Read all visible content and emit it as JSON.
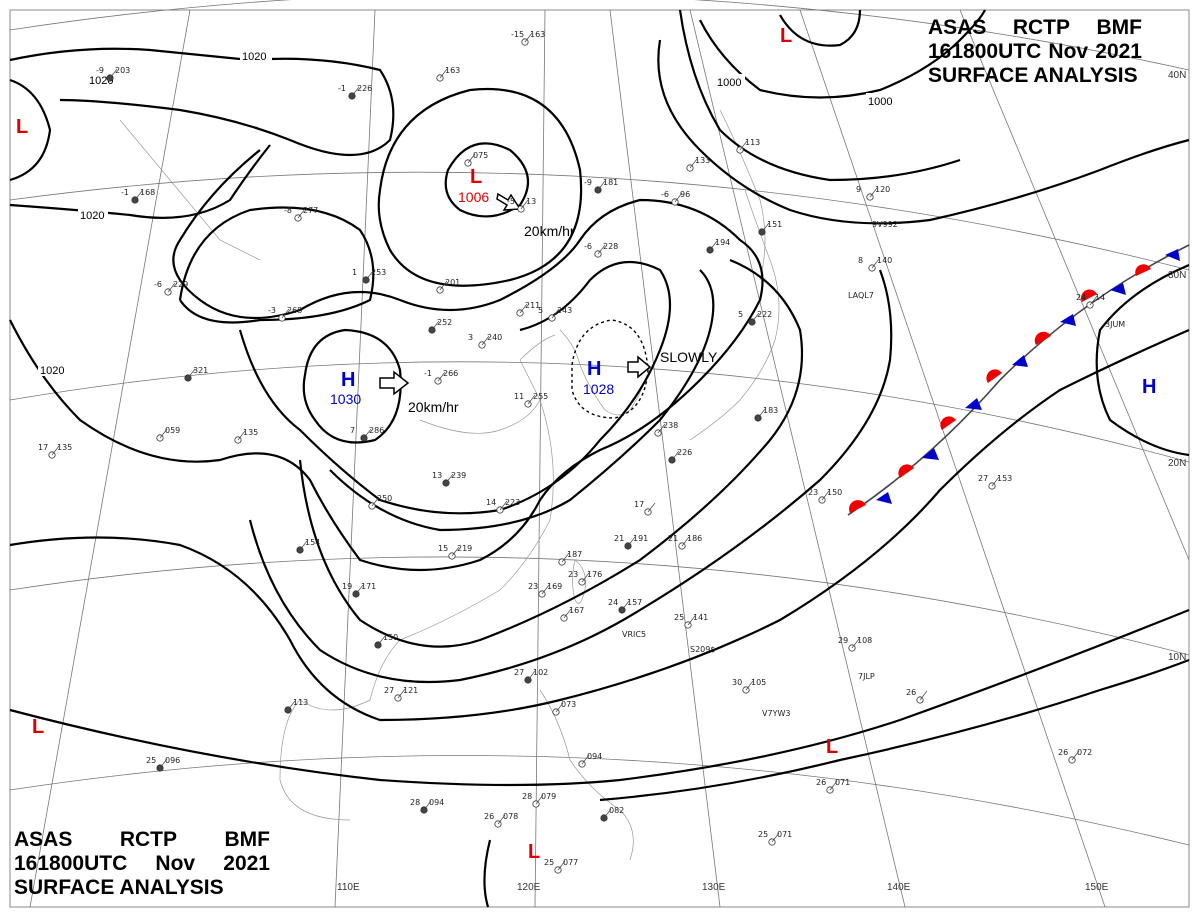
{
  "header": {
    "line1": [
      "ASAS",
      "RCTP",
      "BMF"
    ],
    "line2": [
      "161800UTC",
      "Nov",
      "2021"
    ],
    "line3": "SURFACE ANALYSIS"
  },
  "isobar_labels": [
    "1020",
    "1020",
    "1020",
    "1020",
    "1000",
    "1000"
  ],
  "lat_labels": [
    "40N",
    "30N",
    "20N",
    "10N"
  ],
  "lon_labels": [
    "110E",
    "120E",
    "130E",
    "140E",
    "150E"
  ],
  "highs": [
    {
      "symbol": "H",
      "pressure": "1030",
      "motion": "20km/hr"
    },
    {
      "symbol": "H",
      "pressure": "1028",
      "motion": "SLOWLY"
    },
    {
      "symbol": "H",
      "pressure": ""
    }
  ],
  "lows": [
    {
      "symbol": "L",
      "pressure": "1006",
      "motion": "20km/hr"
    },
    {
      "symbol": "L"
    },
    {
      "symbol": "L"
    },
    {
      "symbol": "L"
    },
    {
      "symbol": "L"
    },
    {
      "symbol": "L"
    }
  ],
  "stations": [
    {
      "t": "-9",
      "p": "203"
    },
    {
      "t": "-15",
      "p": "163"
    },
    {
      "t": "",
      "p": "163"
    },
    {
      "t": "-1",
      "p": "226"
    },
    {
      "t": "",
      "p": "075"
    },
    {
      "t": "-5",
      "p": "13"
    },
    {
      "t": "-9",
      "p": "181"
    },
    {
      "t": "",
      "p": "133"
    },
    {
      "t": "",
      "p": "113"
    },
    {
      "t": "-1",
      "p": "168"
    },
    {
      "t": "-8",
      "p": "277"
    },
    {
      "t": "-6",
      "p": "96"
    },
    {
      "t": "",
      "p": "151"
    },
    {
      "t": "9",
      "p": "120"
    },
    {
      "t": "-6",
      "p": "228"
    },
    {
      "t": "",
      "p": "194"
    },
    {
      "t": "8",
      "p": "140"
    },
    {
      "t": "-6",
      "p": "229"
    },
    {
      "t": "1",
      "p": "253"
    },
    {
      "t": "",
      "p": "201"
    },
    {
      "t": "-3",
      "p": "268"
    },
    {
      "t": "",
      "p": "252"
    },
    {
      "t": "",
      "p": "211"
    },
    {
      "t": "5",
      "p": "243"
    },
    {
      "t": "5",
      "p": "222"
    },
    {
      "t": "24",
      "p": "14"
    },
    {
      "t": "3",
      "p": "240"
    },
    {
      "t": "",
      "p": "321"
    },
    {
      "t": "-1",
      "p": "266"
    },
    {
      "t": "11",
      "p": "255"
    },
    {
      "t": "",
      "p": "183"
    },
    {
      "t": "",
      "p": "059"
    },
    {
      "t": "",
      "p": "135"
    },
    {
      "t": "7",
      "p": "286"
    },
    {
      "t": "17",
      "p": "135"
    },
    {
      "t": "",
      "p": "238"
    },
    {
      "t": "13",
      "p": "239"
    },
    {
      "t": "",
      "p": "250"
    },
    {
      "t": "14",
      "p": "223"
    },
    {
      "t": "",
      "p": "226"
    },
    {
      "t": "23",
      "p": "150"
    },
    {
      "t": "27",
      "p": "153"
    },
    {
      "t": "",
      "p": "154"
    },
    {
      "t": "15",
      "p": "219"
    },
    {
      "t": "",
      "p": "187"
    },
    {
      "t": "21",
      "p": "191"
    },
    {
      "t": "21",
      "p": "186"
    },
    {
      "t": "17",
      "p": ""
    },
    {
      "t": "19",
      "p": "171"
    },
    {
      "t": "23",
      "p": "169"
    },
    {
      "t": "23",
      "p": "176"
    },
    {
      "t": "24",
      "p": "157"
    },
    {
      "t": "",
      "p": "167"
    },
    {
      "t": "25",
      "p": "141"
    },
    {
      "t": "",
      "p": "150"
    },
    {
      "t": "29",
      "p": "108"
    },
    {
      "t": "27",
      "p": "121"
    },
    {
      "t": "27",
      "p": "102"
    },
    {
      "t": "30",
      "p": "105"
    },
    {
      "t": "26",
      "p": ""
    },
    {
      "t": "",
      "p": "113"
    },
    {
      "t": "",
      "p": "073"
    },
    {
      "t": "26",
      "p": "072"
    },
    {
      "t": "25",
      "p": "096"
    },
    {
      "t": "",
      "p": "094"
    },
    {
      "t": "26",
      "p": "071"
    },
    {
      "t": "28",
      "p": "094"
    },
    {
      "t": "28",
      "p": "079"
    },
    {
      "t": "26",
      "p": "078"
    },
    {
      "t": "",
      "p": "082"
    },
    {
      "t": "25",
      "p": "071"
    },
    {
      "t": "25",
      "p": "077"
    }
  ],
  "ship_ids": [
    "9V992",
    "LAQL7",
    "3JUM",
    "VRIC5",
    "S209$",
    "7JLP",
    "V7YW3"
  ]
}
